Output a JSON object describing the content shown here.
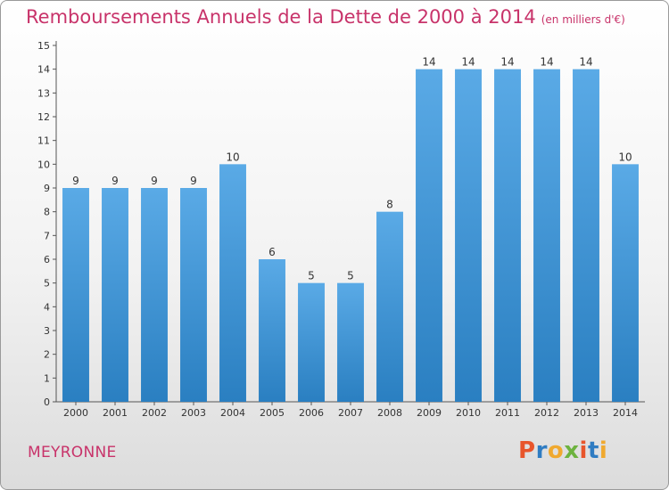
{
  "chart_data": {
    "type": "bar",
    "title": "Remboursements Annuels de la Dette de 2000 à 2014",
    "subtitle": "(en milliers d'€)",
    "categories": [
      "2000",
      "2001",
      "2002",
      "2003",
      "2004",
      "2005",
      "2006",
      "2007",
      "2008",
      "2009",
      "2010",
      "2011",
      "2012",
      "2013",
      "2014"
    ],
    "values": [
      9,
      9,
      9,
      9,
      10,
      6,
      5,
      5,
      8,
      14,
      14,
      14,
      14,
      14,
      10
    ],
    "ylim": [
      0,
      15
    ],
    "yticks": [
      0,
      1,
      2,
      3,
      4,
      5,
      6,
      7,
      8,
      9,
      10,
      11,
      12,
      13,
      14,
      15
    ],
    "grid": false,
    "bar_color_top": "#5aaae6",
    "bar_color_bottom": "#2a7fc1"
  },
  "commune": "MEYRONNE",
  "brand": "Proxiti",
  "colors": {
    "title": "#c8336a",
    "commune": "#c8336a"
  }
}
